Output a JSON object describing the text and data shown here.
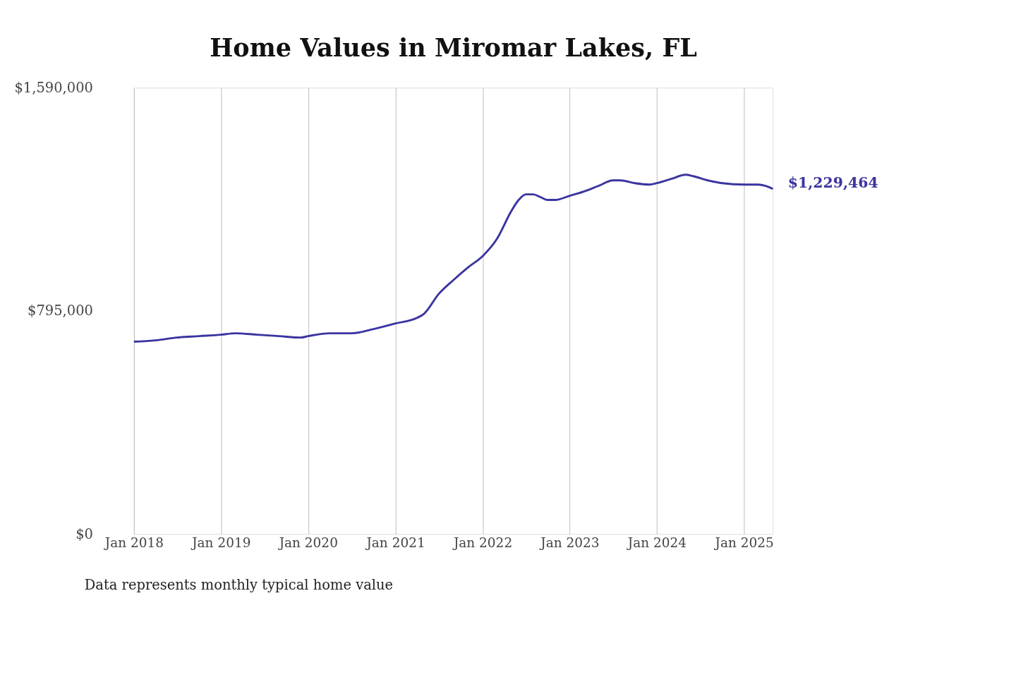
{
  "chart_data": {
    "type": "line",
    "title": "Home Values in Miromar Lakes, FL",
    "x": [
      "2018-01",
      "2018-04",
      "2018-07",
      "2018-10",
      "2019-01",
      "2019-03",
      "2019-06",
      "2019-09",
      "2019-12",
      "2020-01",
      "2020-04",
      "2020-07",
      "2020-10",
      "2021-01",
      "2021-04",
      "2021-05",
      "2021-07",
      "2021-09",
      "2021-11",
      "2022-01",
      "2022-03",
      "2022-05",
      "2022-06",
      "2022-07",
      "2022-08",
      "2022-09",
      "2022-10",
      "2022-11",
      "2023-01",
      "2023-03",
      "2023-05",
      "2023-07",
      "2023-08",
      "2023-10",
      "2023-12",
      "2024-01",
      "2024-03",
      "2024-05",
      "2024-06",
      "2024-08",
      "2024-10",
      "2025-01",
      "2025-03",
      "2025-04",
      "2025-05"
    ],
    "series": [
      {
        "color": "#3a34a0",
        "values": [
          685000,
          690000,
          700000,
          705000,
          710000,
          715000,
          710000,
          705000,
          700000,
          705000,
          715000,
          715000,
          730000,
          750000,
          770000,
          785000,
          855000,
          905000,
          950000,
          990000,
          1050000,
          1150000,
          1190000,
          1210000,
          1210000,
          1200000,
          1190000,
          1190000,
          1205000,
          1220000,
          1240000,
          1260000,
          1260000,
          1250000,
          1245000,
          1250000,
          1265000,
          1280000,
          1275000,
          1260000,
          1250000,
          1245000,
          1245000,
          1240000,
          1229464
        ]
      }
    ],
    "xlim": [
      "2018-01",
      "2025-05"
    ],
    "xticks": [
      {
        "value": "2018-01",
        "label": "Jan 2018"
      },
      {
        "value": "2019-01",
        "label": "Jan 2019"
      },
      {
        "value": "2020-01",
        "label": "Jan 2020"
      },
      {
        "value": "2021-01",
        "label": "Jan 2021"
      },
      {
        "value": "2022-01",
        "label": "Jan 2022"
      },
      {
        "value": "2023-01",
        "label": "Jan 2023"
      },
      {
        "value": "2024-01",
        "label": "Jan 2024"
      },
      {
        "value": "2025-01",
        "label": "Jan 2025"
      }
    ],
    "ylim": [
      0,
      1590000
    ],
    "yticks": [
      {
        "value": 0,
        "label": "$0"
      },
      {
        "value": 795000,
        "label": "$795,000"
      },
      {
        "value": 1590000,
        "label": "$1,590,000"
      }
    ],
    "grid": "x",
    "marker": "none",
    "line_style": "solid",
    "annotations": [
      {
        "text": "$1,229,464",
        "x": "2025-05",
        "y": 1229464
      },
      "Data represents monthly typical home value"
    ]
  }
}
